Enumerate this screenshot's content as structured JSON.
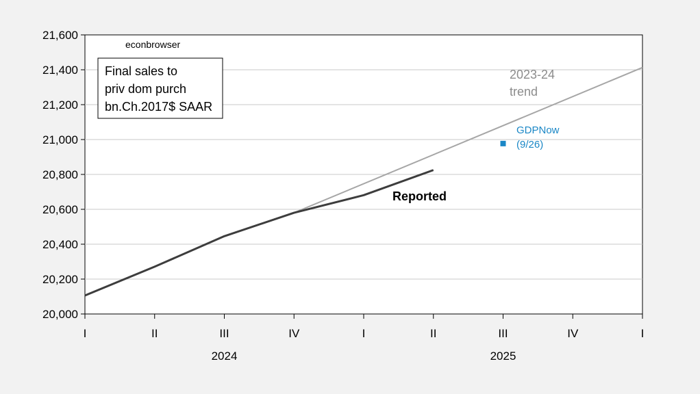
{
  "chart_data": {
    "type": "line",
    "watermark": "econbrowser",
    "legend_box": [
      "Final sales to",
      "priv dom purch",
      "bn.Ch.2017$ SAAR"
    ],
    "x": [
      "2024Q1",
      "2024Q2",
      "2024Q3",
      "2024Q4",
      "2025Q1",
      "2025Q2",
      "2025Q3",
      "2025Q4",
      "2026Q1"
    ],
    "quarter_labels": [
      "I",
      "II",
      "III",
      "IV",
      "I",
      "II",
      "III",
      "IV",
      "I"
    ],
    "year_labels": [
      "2024",
      "2025"
    ],
    "ylim": [
      20000,
      21600
    ],
    "yticks": [
      "20,000",
      "20,200",
      "20,400",
      "20,600",
      "20,800",
      "21,000",
      "21,200",
      "21,400",
      "21,600"
    ],
    "grid": true,
    "series": [
      {
        "name": "Reported",
        "color": "#3d3d3d",
        "x": [
          "2024Q1",
          "2024Q2",
          "2024Q3",
          "2024Q4",
          "2025Q1",
          "2025Q2"
        ],
        "values": [
          20106,
          20271,
          20446,
          20580,
          20681,
          20825
        ]
      },
      {
        "name": "2023-24 trend",
        "color": "#a6a6a6",
        "x": [
          "2024Q4",
          "2026Q1"
        ],
        "values": [
          20580,
          21413
        ]
      },
      {
        "name": "GDPNow (9/26)",
        "color": "#1a87c6",
        "x": [
          "2025Q3"
        ],
        "values": [
          20977
        ]
      }
    ],
    "annotations": {
      "reported": "Reported",
      "trend_line1": "2023-24",
      "trend_line2": "trend",
      "gdpnow_line1": "GDPNow",
      "gdpnow_line2": "(9/26)"
    }
  }
}
